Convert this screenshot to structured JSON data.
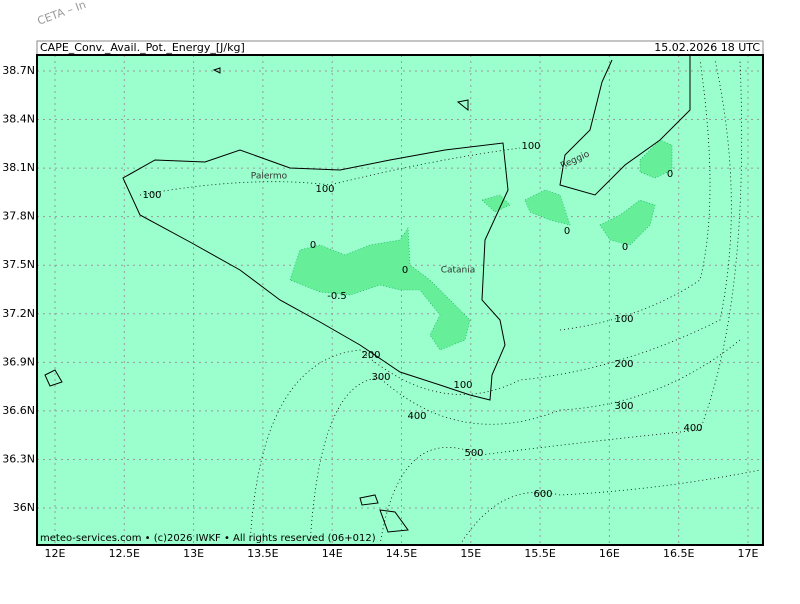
{
  "watermark": "CETA – In",
  "header": {
    "title": "CAPE_Conv._Avail._Pot._Energy_[J/kg]",
    "valid": "15.02.2026 18 UTC"
  },
  "map": {
    "lat_ticks": [
      {
        "value": 38.7,
        "label": "38.7N"
      },
      {
        "value": 38.4,
        "label": "38.4N"
      },
      {
        "value": 38.1,
        "label": "38.1N"
      },
      {
        "value": 37.8,
        "label": "37.8N"
      },
      {
        "value": 37.5,
        "label": "37.5N"
      },
      {
        "value": 37.2,
        "label": "37.2N"
      },
      {
        "value": 36.9,
        "label": "36.9N"
      },
      {
        "value": 36.6,
        "label": "36.6N"
      },
      {
        "value": 36.3,
        "label": "36.3N"
      },
      {
        "value": 36,
        "label": "36N"
      }
    ],
    "lon_ticks": [
      {
        "value": 12,
        "label": "12E"
      },
      {
        "value": 12.5,
        "label": "12.5E"
      },
      {
        "value": 13,
        "label": "13E"
      },
      {
        "value": 13.5,
        "label": "13.5E"
      },
      {
        "value": 14,
        "label": "14E"
      },
      {
        "value": 14.5,
        "label": "14.5E"
      },
      {
        "value": 15,
        "label": "15E"
      },
      {
        "value": 15.5,
        "label": "15.5E"
      },
      {
        "value": 16,
        "label": "16E"
      },
      {
        "value": 16.5,
        "label": "16.5E"
      },
      {
        "value": 17,
        "label": "17E"
      }
    ],
    "cities": [
      "Palermo",
      "Catania",
      "Reggio"
    ],
    "contour_labels": [
      100,
      100,
      100,
      0,
      0,
      -0.5,
      0,
      0,
      0,
      100,
      200,
      200,
      300,
      100,
      300,
      400,
      400,
      500,
      600
    ]
  },
  "footer": "meteo-services.com • (c)2026 IWKF • All rights reserved (06+012)"
}
